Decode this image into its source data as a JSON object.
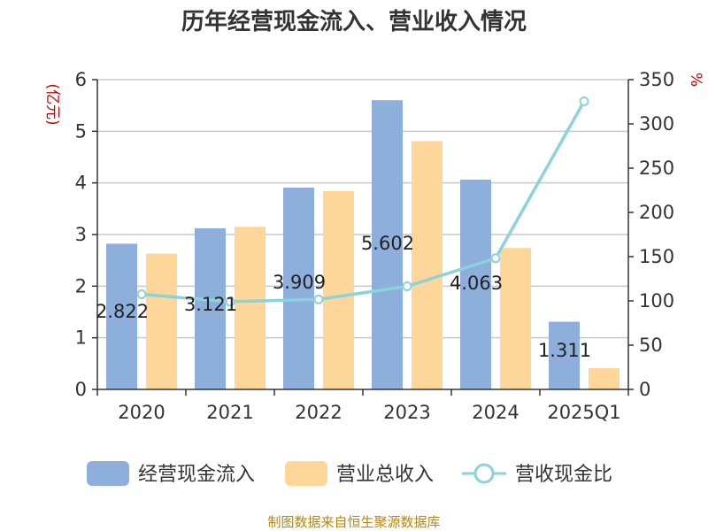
{
  "chart_data": {
    "type": "bar",
    "title": "历年经营现金流入、营业收入情况",
    "categories": [
      "2020",
      "2021",
      "2022",
      "2023",
      "2024",
      "2025Q1"
    ],
    "left_axis": {
      "unit_label": "(亿元)",
      "ylim": [
        0,
        6
      ],
      "ticks": [
        "0",
        "1",
        "2",
        "3",
        "4",
        "5",
        "6"
      ]
    },
    "right_axis": {
      "unit_label": "%",
      "ylim": [
        0,
        350
      ],
      "ticks": [
        "0",
        "50",
        "100",
        "150",
        "200",
        "250",
        "300",
        "350"
      ]
    },
    "grid": true,
    "legend_position": "bottom",
    "series": [
      {
        "name": "经营现金流入",
        "type": "bar",
        "axis": "left",
        "color": "#8eaedb",
        "values": [
          2.822,
          3.121,
          3.909,
          5.602,
          4.063,
          1.311
        ],
        "labels": [
          "2.822",
          "3.121",
          "3.909",
          "5.602",
          "4.063",
          "1.311"
        ]
      },
      {
        "name": "营业总收入",
        "type": "bar",
        "axis": "left",
        "color": "#ffd699",
        "values": [
          2.63,
          3.15,
          3.84,
          4.81,
          2.74,
          0.41
        ]
      },
      {
        "name": "营收现金比",
        "type": "line",
        "axis": "right",
        "color": "#8bd3d8",
        "values": [
          107.5,
          99.1,
          101.7,
          116.5,
          148.2,
          325.5
        ]
      }
    ]
  },
  "footer": {
    "source": "制图数据来自恒生聚源数据库"
  }
}
